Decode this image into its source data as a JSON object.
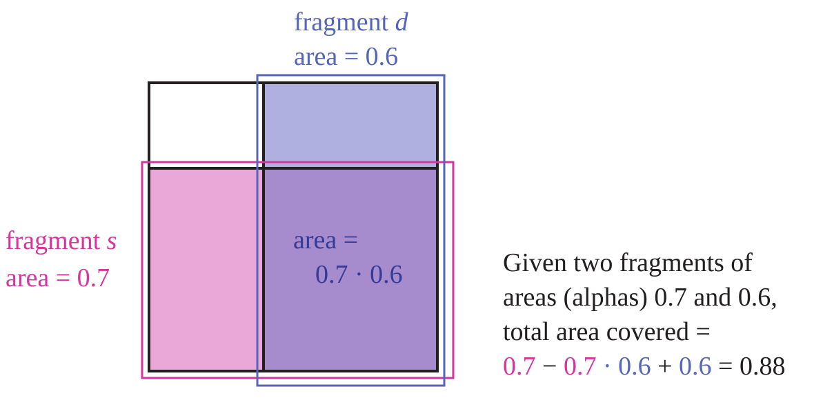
{
  "colors": {
    "magenta": "#D6359F",
    "blue": "#5565B8",
    "dark_blue": "#343C9A",
    "black": "#231F20",
    "pink_fill": "#E9A8D7",
    "lavender_fill": "#B0B0E0",
    "purple_fill": "#A68CCC",
    "white_fill": "#FFFFFF"
  },
  "fragment_d": {
    "label_prefix": "fragment",
    "label_var": "d",
    "area_label": "area = 0.6"
  },
  "fragment_s": {
    "label_prefix": "fragment",
    "label_var": "s",
    "area_label": "area = 0.7"
  },
  "overlap": {
    "line1": "area =",
    "line2": "0.7 · 0.6"
  },
  "caption": {
    "line1": "Given two fragments of",
    "line2": "areas (alphas) 0.7 and 0.6,",
    "line3": "total area covered =",
    "formula": {
      "a": "0.7",
      "minus": " − ",
      "b": "0.7",
      "dot": " · ",
      "c": "0.6",
      "plus": " + ",
      "d": "0.6",
      "eq": " = 0.88"
    }
  }
}
